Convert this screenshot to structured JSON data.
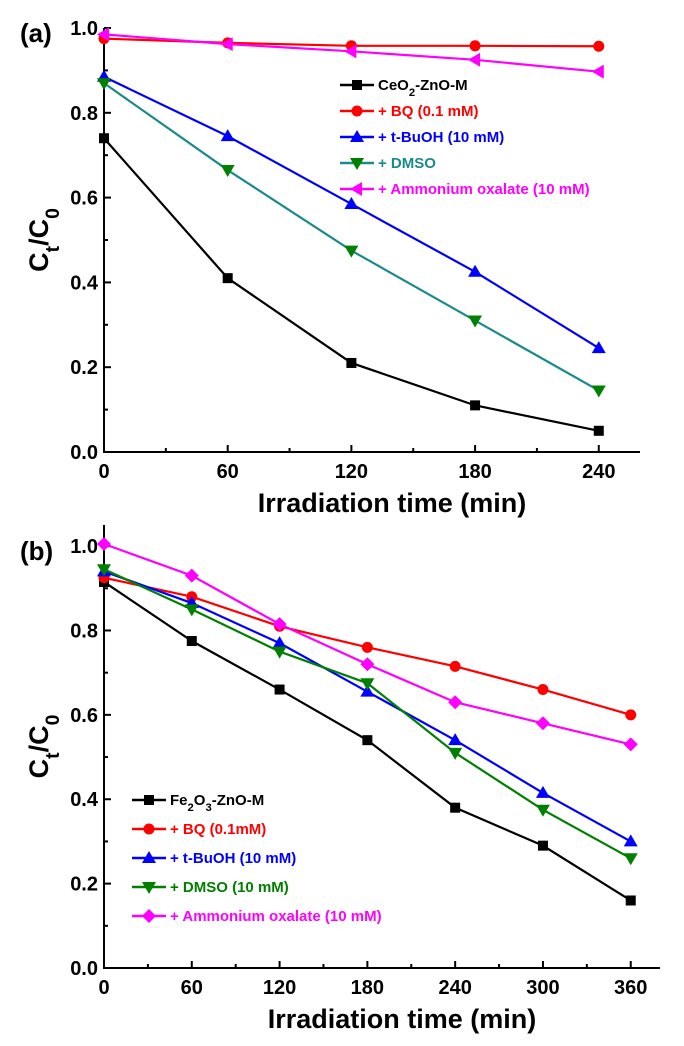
{
  "chart_data": [
    {
      "panel": "(a)",
      "type": "line",
      "xlabel": "Irradiation time (min)",
      "ylabel": [
        "C",
        "t",
        "/C",
        "0"
      ],
      "xlim": [
        0,
        260
      ],
      "ylim": [
        0,
        1.0
      ],
      "xticks": [
        0,
        60,
        120,
        180,
        240
      ],
      "yticks": [
        0.0,
        0.2,
        0.4,
        0.6,
        0.8,
        1.0
      ],
      "ytick_labels": [
        "0.0",
        "0.2",
        "0.4",
        "0.6",
        "0.8",
        "1.0"
      ],
      "legend_position": "top-right",
      "series": [
        {
          "name": "CeO2-ZnO-M",
          "name_parts": [
            [
              "CeO",
              ""
            ],
            [
              "2",
              "sub"
            ],
            [
              "-ZnO-M",
              ""
            ]
          ],
          "color": "#000000",
          "marker": "square",
          "x": [
            0,
            60,
            120,
            180,
            240
          ],
          "y": [
            0.74,
            0.41,
            0.21,
            0.11,
            0.05
          ]
        },
        {
          "name": "+ BQ (0.1 mM)",
          "name_parts": [
            [
              "+ BQ (0.1 mM)",
              ""
            ]
          ],
          "color": "#ff0000",
          "marker": "circle",
          "x": [
            0,
            60,
            120,
            180,
            240
          ],
          "y": [
            0.975,
            0.965,
            0.958,
            0.958,
            0.957
          ]
        },
        {
          "name": "+ t-BuOH (10 mM)",
          "name_parts": [
            [
              "+ t-BuOH (10 mM)",
              ""
            ]
          ],
          "color": "#0000ff",
          "marker": "triangle-up",
          "x": [
            0,
            60,
            120,
            180,
            240
          ],
          "y": [
            0.885,
            0.745,
            0.585,
            0.425,
            0.245
          ]
        },
        {
          "name": "+ DMSO",
          "name_parts": [
            [
              "+ DMSO",
              ""
            ]
          ],
          "color": "#1a8a8a",
          "line_color": "#1a8a8a",
          "marker_color": "#008000",
          "marker": "triangle-down",
          "x": [
            0,
            60,
            120,
            180,
            240
          ],
          "y": [
            0.87,
            0.665,
            0.475,
            0.31,
            0.145
          ]
        },
        {
          "name": "+ Ammonium oxalate (10 mM)",
          "name_parts": [
            [
              "+ Ammonium oxalate (10 mM)",
              ""
            ]
          ],
          "color": "#ff00ff",
          "marker": "triangle-left",
          "x": [
            0,
            60,
            120,
            180,
            240
          ],
          "y": [
            0.985,
            0.962,
            0.945,
            0.925,
            0.897
          ]
        }
      ]
    },
    {
      "panel": "(b)",
      "type": "line",
      "xlabel": "Irradiation time (min)",
      "ylabel": [
        "C",
        "t",
        "/C",
        "0"
      ],
      "xlim": [
        0,
        380
      ],
      "ylim": [
        0,
        1.05
      ],
      "xticks": [
        0,
        60,
        120,
        180,
        240,
        300,
        360
      ],
      "yticks": [
        0.0,
        0.2,
        0.4,
        0.6,
        0.8,
        1.0
      ],
      "ytick_labels": [
        "0.0",
        "0.2",
        "0.4",
        "0.6",
        "0.8",
        "1.0"
      ],
      "legend_position": "bottom-left",
      "series": [
        {
          "name": "Fe2O3-ZnO-M",
          "name_parts": [
            [
              "Fe",
              ""
            ],
            [
              "2",
              "sub"
            ],
            [
              "O",
              ""
            ],
            [
              "3",
              "sub"
            ],
            [
              "-ZnO-M",
              ""
            ]
          ],
          "color": "#000000",
          "marker": "square",
          "x": [
            0,
            60,
            120,
            180,
            240,
            300,
            360
          ],
          "y": [
            0.915,
            0.775,
            0.66,
            0.54,
            0.38,
            0.29,
            0.16
          ]
        },
        {
          "name": "+ BQ (0.1mM)",
          "name_parts": [
            [
              "+ BQ (0.1mM)",
              ""
            ]
          ],
          "color": "#ff0000",
          "marker": "circle",
          "x": [
            0,
            60,
            120,
            180,
            240,
            300,
            360
          ],
          "y": [
            0.925,
            0.88,
            0.81,
            0.76,
            0.715,
            0.66,
            0.6
          ]
        },
        {
          "name": "+ t-BuOH (10 mM)",
          "name_parts": [
            [
              "+ t-BuOH (10 mM)",
              ""
            ]
          ],
          "color": "#0000ff",
          "marker": "triangle-up",
          "x": [
            0,
            60,
            120,
            180,
            240,
            300,
            360
          ],
          "y": [
            0.94,
            0.865,
            0.77,
            0.655,
            0.54,
            0.415,
            0.3
          ]
        },
        {
          "name": "+ DMSO (10 mM)",
          "name_parts": [
            [
              "+ DMSO (10 mM)",
              ""
            ]
          ],
          "color": "#008000",
          "marker": "triangle-down",
          "x": [
            0,
            60,
            120,
            180,
            240,
            300,
            360
          ],
          "y": [
            0.945,
            0.85,
            0.75,
            0.675,
            0.51,
            0.375,
            0.26
          ]
        },
        {
          "name": "+ Ammonium oxalate (10 mM)",
          "name_parts": [
            [
              "+ Ammonium oxalate (10 mM)",
              ""
            ]
          ],
          "color": "#ff00ff",
          "marker": "diamond",
          "x": [
            0,
            60,
            120,
            180,
            240,
            300,
            360
          ],
          "y": [
            1.005,
            0.93,
            0.815,
            0.72,
            0.63,
            0.58,
            0.53
          ]
        }
      ]
    }
  ]
}
